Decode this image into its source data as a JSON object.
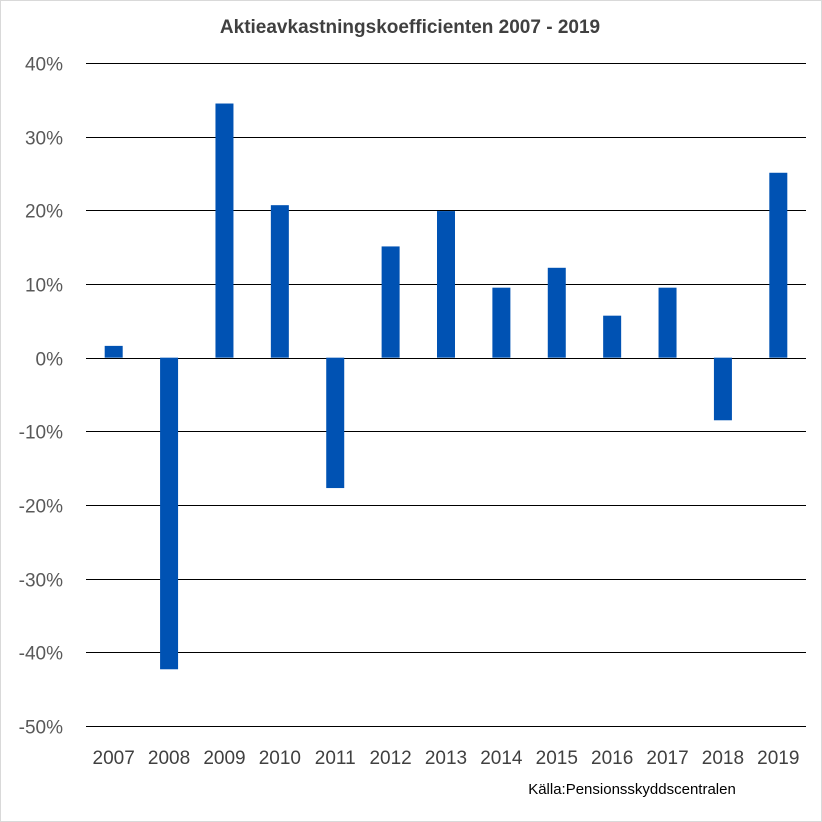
{
  "chart_data": {
    "type": "bar",
    "title": "Aktieavkastningskoefficienten 2007 - 2019",
    "categories": [
      "2007",
      "2008",
      "2009",
      "2010",
      "2011",
      "2012",
      "2013",
      "2014",
      "2015",
      "2016",
      "2017",
      "2018",
      "2019"
    ],
    "values": [
      1.6,
      -42.3,
      34.5,
      20.7,
      -17.7,
      15.1,
      19.9,
      9.5,
      12.2,
      5.7,
      9.5,
      -8.5,
      25.1
    ],
    "value_unit": "%",
    "ylim": [
      -50,
      40
    ],
    "yticks": [
      "40%",
      "30%",
      "20%",
      "10%",
      "0%",
      "-10%",
      "-20%",
      "-30%",
      "-40%",
      "-50%"
    ],
    "ytick_values": [
      40,
      30,
      20,
      10,
      0,
      -10,
      -20,
      -30,
      -40,
      -50
    ],
    "grid": true,
    "legend": "none",
    "bar_color": "#0052b3",
    "source": "Källa:Pensionsskyddscentralen"
  }
}
